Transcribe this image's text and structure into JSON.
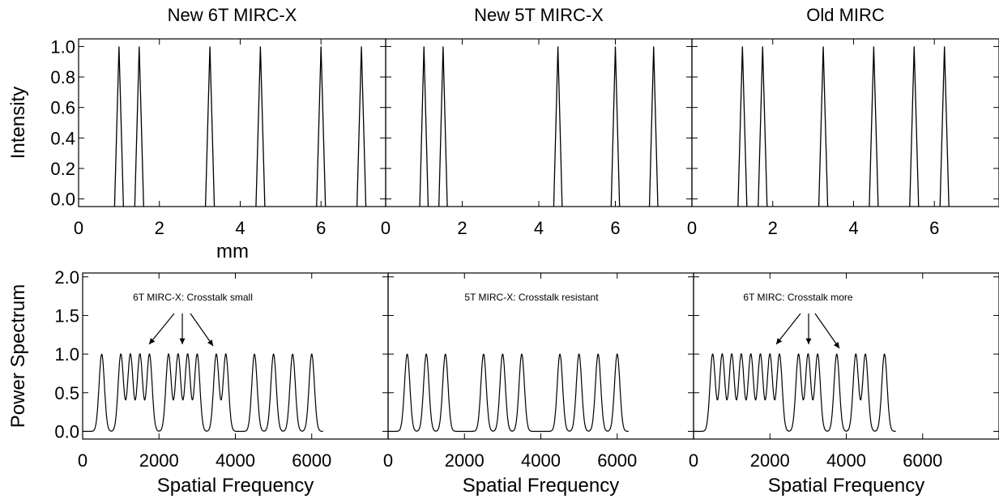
{
  "chart_data": [
    {
      "type": "line",
      "panel": "intensity-new6t",
      "title": "New 6T MIRC-X",
      "xlabel": "mm",
      "ylabel": "Intensity",
      "xlim": [
        0,
        7.6
      ],
      "ylim": [
        -0.05,
        1.05
      ],
      "xticks": [
        "0",
        "2",
        "4",
        "6"
      ],
      "yticks": [
        "0.0",
        "0.2",
        "0.4",
        "0.6",
        "0.8",
        "1.0"
      ],
      "peaks": [
        1.0,
        1.5,
        3.25,
        4.5,
        6.0,
        7.0
      ],
      "peak_value": 1.0,
      "baseline": -0.05
    },
    {
      "type": "line",
      "panel": "intensity-new5t",
      "title": "New 5T MIRC-X",
      "xlim": [
        0,
        8.0
      ],
      "ylim": [
        -0.05,
        1.05
      ],
      "xticks": [
        "0",
        "2",
        "4",
        "6"
      ],
      "peaks": [
        1.0,
        1.5,
        4.5,
        6.0,
        7.0
      ],
      "peak_value": 1.0,
      "baseline": -0.05
    },
    {
      "type": "line",
      "panel": "intensity-old",
      "title": "Old MIRC",
      "xlim": [
        0,
        7.6
      ],
      "ylim": [
        -0.05,
        1.05
      ],
      "xticks": [
        "0",
        "2",
        "4",
        "6"
      ],
      "peaks": [
        1.25,
        1.75,
        3.25,
        4.5,
        5.5,
        6.25
      ],
      "peak_value": 1.0,
      "baseline": -0.05
    },
    {
      "type": "line",
      "panel": "power-new6t",
      "xlabel": "Spatial Frequency",
      "ylabel": "Power Spectrum",
      "xlim": [
        0,
        8000
      ],
      "ylim": [
        -0.1,
        2.05
      ],
      "xticks": [
        "0",
        "2000",
        "4000",
        "6000"
      ],
      "yticks": [
        "0.0",
        "0.5",
        "1.0",
        "1.5",
        "2.0"
      ],
      "annotation": "6T MIRC-X:  Crosstalk small",
      "peaks": [
        500,
        1000,
        1250,
        1500,
        1750,
        2250,
        2500,
        2750,
        3000,
        3500,
        3750,
        4500,
        5000,
        5500,
        6000
      ],
      "peak_value": 1.0
    },
    {
      "type": "line",
      "panel": "power-new5t",
      "xlabel": "Spatial Frequency",
      "xlim": [
        0,
        8000
      ],
      "ylim": [
        -0.1,
        2.05
      ],
      "xticks": [
        "0",
        "2000",
        "4000",
        "6000"
      ],
      "annotation": "5T MIRC-X:    Crosstalk resistant",
      "peaks": [
        500,
        1000,
        1500,
        2500,
        3000,
        3500,
        4500,
        5000,
        5500,
        6000
      ],
      "peak_value": 1.0
    },
    {
      "type": "line",
      "panel": "power-old",
      "xlabel": "Spatial Frequency",
      "xlim": [
        0,
        8000
      ],
      "ylim": [
        -0.1,
        2.05
      ],
      "xticks": [
        "0",
        "2000",
        "4000",
        "6000"
      ],
      "annotation": "6T MIRC:   Crosstalk more",
      "peaks": [
        500,
        750,
        1000,
        1250,
        1500,
        1750,
        2000,
        2250,
        2750,
        3000,
        3250,
        3750,
        4250,
        4500,
        5000
      ],
      "peak_value": 1.0
    }
  ]
}
